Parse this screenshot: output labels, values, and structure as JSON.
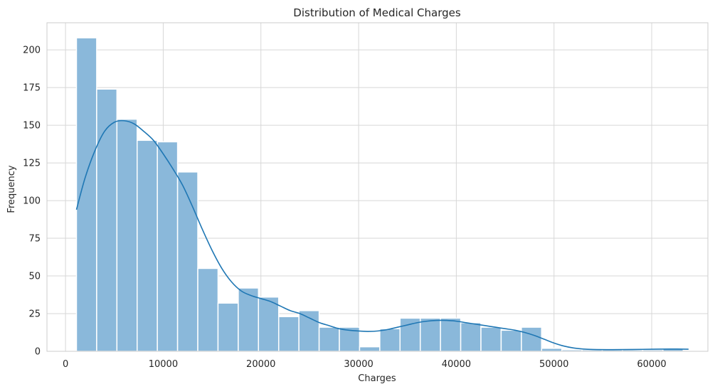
{
  "chart_data": {
    "type": "bar",
    "subtype": "histogram-with-kde",
    "title": "Distribution of Medical Charges",
    "xlabel": "Charges",
    "ylabel": "Frequency",
    "xlim": [
      -1900,
      65750
    ],
    "ylim": [
      0,
      218
    ],
    "xticks": [
      0,
      10000,
      20000,
      30000,
      40000,
      50000,
      60000
    ],
    "xtick_labels": [
      "0",
      "10000",
      "20000",
      "30000",
      "40000",
      "50000",
      "60000"
    ],
    "yticks": [
      0,
      25,
      50,
      75,
      100,
      125,
      150,
      175,
      200
    ],
    "ytick_labels": [
      "0",
      "25",
      "50",
      "75",
      "100",
      "125",
      "150",
      "175",
      "200"
    ],
    "grid": true,
    "bin_edges": [
      1120,
      3190,
      5260,
      7330,
      9400,
      11470,
      13540,
      15610,
      17680,
      19750,
      21820,
      23890,
      25960,
      28030,
      30100,
      32170,
      34240,
      36310,
      38380,
      40450,
      42520,
      44590,
      46660,
      48730,
      50800,
      52870,
      54940,
      57010,
      59080,
      61150,
      63220
    ],
    "values": [
      208,
      174,
      154,
      140,
      139,
      119,
      55,
      32,
      42,
      36,
      23,
      27,
      16,
      16,
      3,
      15,
      22,
      22,
      22,
      19,
      16,
      14,
      16,
      2,
      1,
      1,
      1,
      1,
      1,
      2
    ],
    "kde": {
      "x": [
        1120,
        2000,
        3000,
        4000,
        5000,
        6000,
        7000,
        8000,
        9000,
        10000,
        11000,
        12000,
        13000,
        14000,
        15000,
        16000,
        17000,
        18000,
        19000,
        20000,
        21000,
        22000,
        23000,
        24000,
        25000,
        26000,
        27000,
        28000,
        29000,
        30000,
        31000,
        32000,
        33000,
        34000,
        35000,
        36000,
        37000,
        38000,
        39000,
        40000,
        41000,
        42000,
        43000,
        44000,
        45000,
        46000,
        47000,
        48000,
        49000,
        50000,
        51000,
        52000,
        53000,
        54000,
        56000,
        58000,
        60000,
        62000,
        63770
      ],
      "y": [
        94,
        115,
        133,
        146,
        152,
        153,
        151,
        146,
        140,
        131,
        121,
        110,
        96,
        81,
        67,
        55,
        46,
        40,
        37,
        35,
        33,
        30,
        27,
        25,
        22,
        19,
        17,
        15,
        14,
        13.5,
        13.2,
        13.5,
        14.5,
        16,
        17.5,
        19,
        20,
        20.5,
        20.5,
        20,
        19,
        18,
        17,
        16,
        15,
        14,
        12.5,
        10.5,
        8,
        5.5,
        3.5,
        2.2,
        1.5,
        1.2,
        1.1,
        1.2,
        1.4,
        1.5,
        1.4
      ]
    },
    "bar_color": "#8ab8da",
    "line_color": "#1f77b4"
  }
}
